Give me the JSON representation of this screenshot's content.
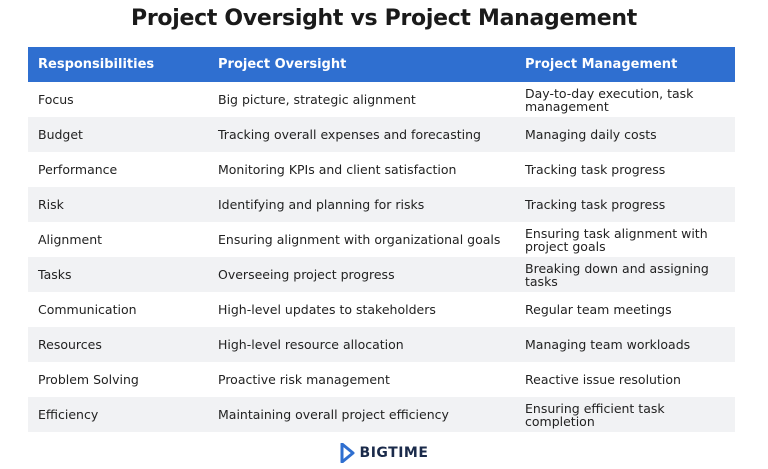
{
  "header": {
    "title": "Project Oversight vs Project Management"
  },
  "table": {
    "columns": [
      "Responsibilities",
      "Project Oversight",
      "Project Management"
    ],
    "rows": [
      [
        "Focus",
        "Big picture, strategic alignment",
        "Day-to-day execution, task management"
      ],
      [
        "Budget",
        "Tracking overall expenses and forecasting",
        "Managing daily costs"
      ],
      [
        "Performance",
        "Monitoring KPIs and client satisfaction",
        "Tracking task progress"
      ],
      [
        "Risk",
        "Identifying and planning for risks",
        "Tracking task progress"
      ],
      [
        "Alignment",
        "Ensuring alignment with organizational goals",
        "Ensuring task alignment with project goals"
      ],
      [
        "Tasks",
        "Overseeing project progress",
        "Breaking down and assigning tasks"
      ],
      [
        "Communication",
        "High-level updates to stakeholders",
        "Regular team meetings"
      ],
      [
        "Resources",
        "High-level resource allocation",
        "Managing team workloads"
      ],
      [
        "Problem Solving",
        "Proactive risk management",
        "Reactive issue resolution"
      ],
      [
        "Efficiency",
        "Maintaining overall project efficiency",
        "Ensuring efficient task completion"
      ]
    ]
  },
  "footer": {
    "logo": "BIGTIME"
  }
}
